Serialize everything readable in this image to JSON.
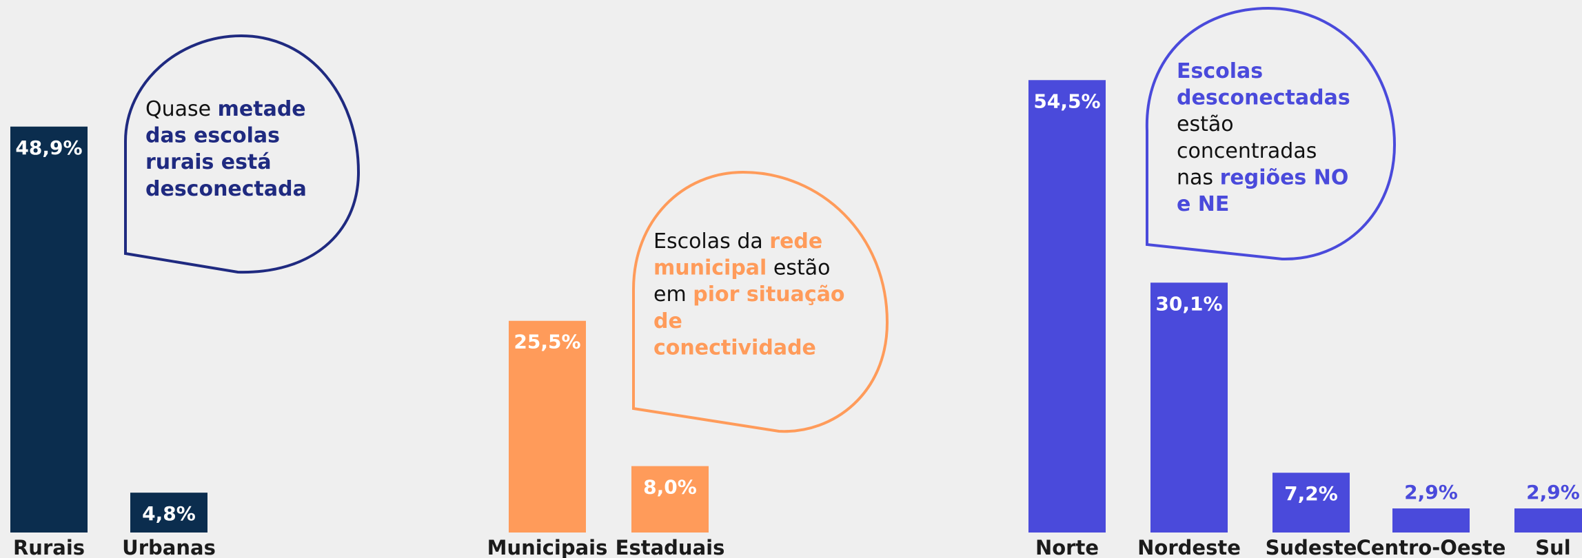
{
  "chart_data": [
    {
      "type": "bar",
      "categories": [
        "Rurais",
        "Urbanas"
      ],
      "values": [
        48.9,
        4.8
      ],
      "value_labels": [
        "48,9%",
        "4,8%"
      ],
      "color": "#0b2d4e",
      "annotation_color": "#1f2a80",
      "annotation": [
        [
          {
            "text": "Quase ",
            "highlight": false
          },
          {
            "text": "metade",
            "highlight": true
          }
        ],
        [
          {
            "text": "das escolas",
            "highlight": true
          }
        ],
        [
          {
            "text": "rurais está",
            "highlight": true
          }
        ],
        [
          {
            "text": "desconectada",
            "highlight": true
          }
        ]
      ]
    },
    {
      "type": "bar",
      "categories": [
        "Municipais",
        "Estaduais"
      ],
      "values": [
        25.5,
        8.0
      ],
      "value_labels": [
        "25,5%",
        "8,0%"
      ],
      "color": "#ff9b5a",
      "annotation_color": "#ff9b5a",
      "annotation": [
        [
          {
            "text": "Escolas da ",
            "highlight": false
          },
          {
            "text": "rede",
            "highlight": true
          }
        ],
        [
          {
            "text": "municipal",
            "highlight": true
          },
          {
            "text": " estão",
            "highlight": false
          }
        ],
        [
          {
            "text": "em ",
            "highlight": false
          },
          {
            "text": "pior situação",
            "highlight": true
          }
        ],
        [
          {
            "text": "de",
            "highlight": true
          }
        ],
        [
          {
            "text": "conectividade",
            "highlight": true
          }
        ]
      ]
    },
    {
      "type": "bar",
      "categories": [
        "Norte",
        "Nordeste",
        "Sudeste",
        "Centro-Oeste",
        "Sul"
      ],
      "values": [
        54.5,
        30.1,
        7.2,
        2.9,
        2.9
      ],
      "value_labels": [
        "54,5%",
        "30,1%",
        "7,2%",
        "2,9%",
        "2,9%"
      ],
      "color": "#4a4adb",
      "annotation_color": "#4a4adb",
      "annotation": [
        [
          {
            "text": "Escolas",
            "highlight": true
          }
        ],
        [
          {
            "text": "desconectadas",
            "highlight": true
          }
        ],
        [
          {
            "text": "estão",
            "highlight": false
          }
        ],
        [
          {
            "text": "concentradas",
            "highlight": false
          }
        ],
        [
          {
            "text": "nas ",
            "highlight": false
          },
          {
            "text": "regiões NO",
            "highlight": true
          }
        ],
        [
          {
            "text": "e NE",
            "highlight": true
          }
        ]
      ]
    }
  ]
}
